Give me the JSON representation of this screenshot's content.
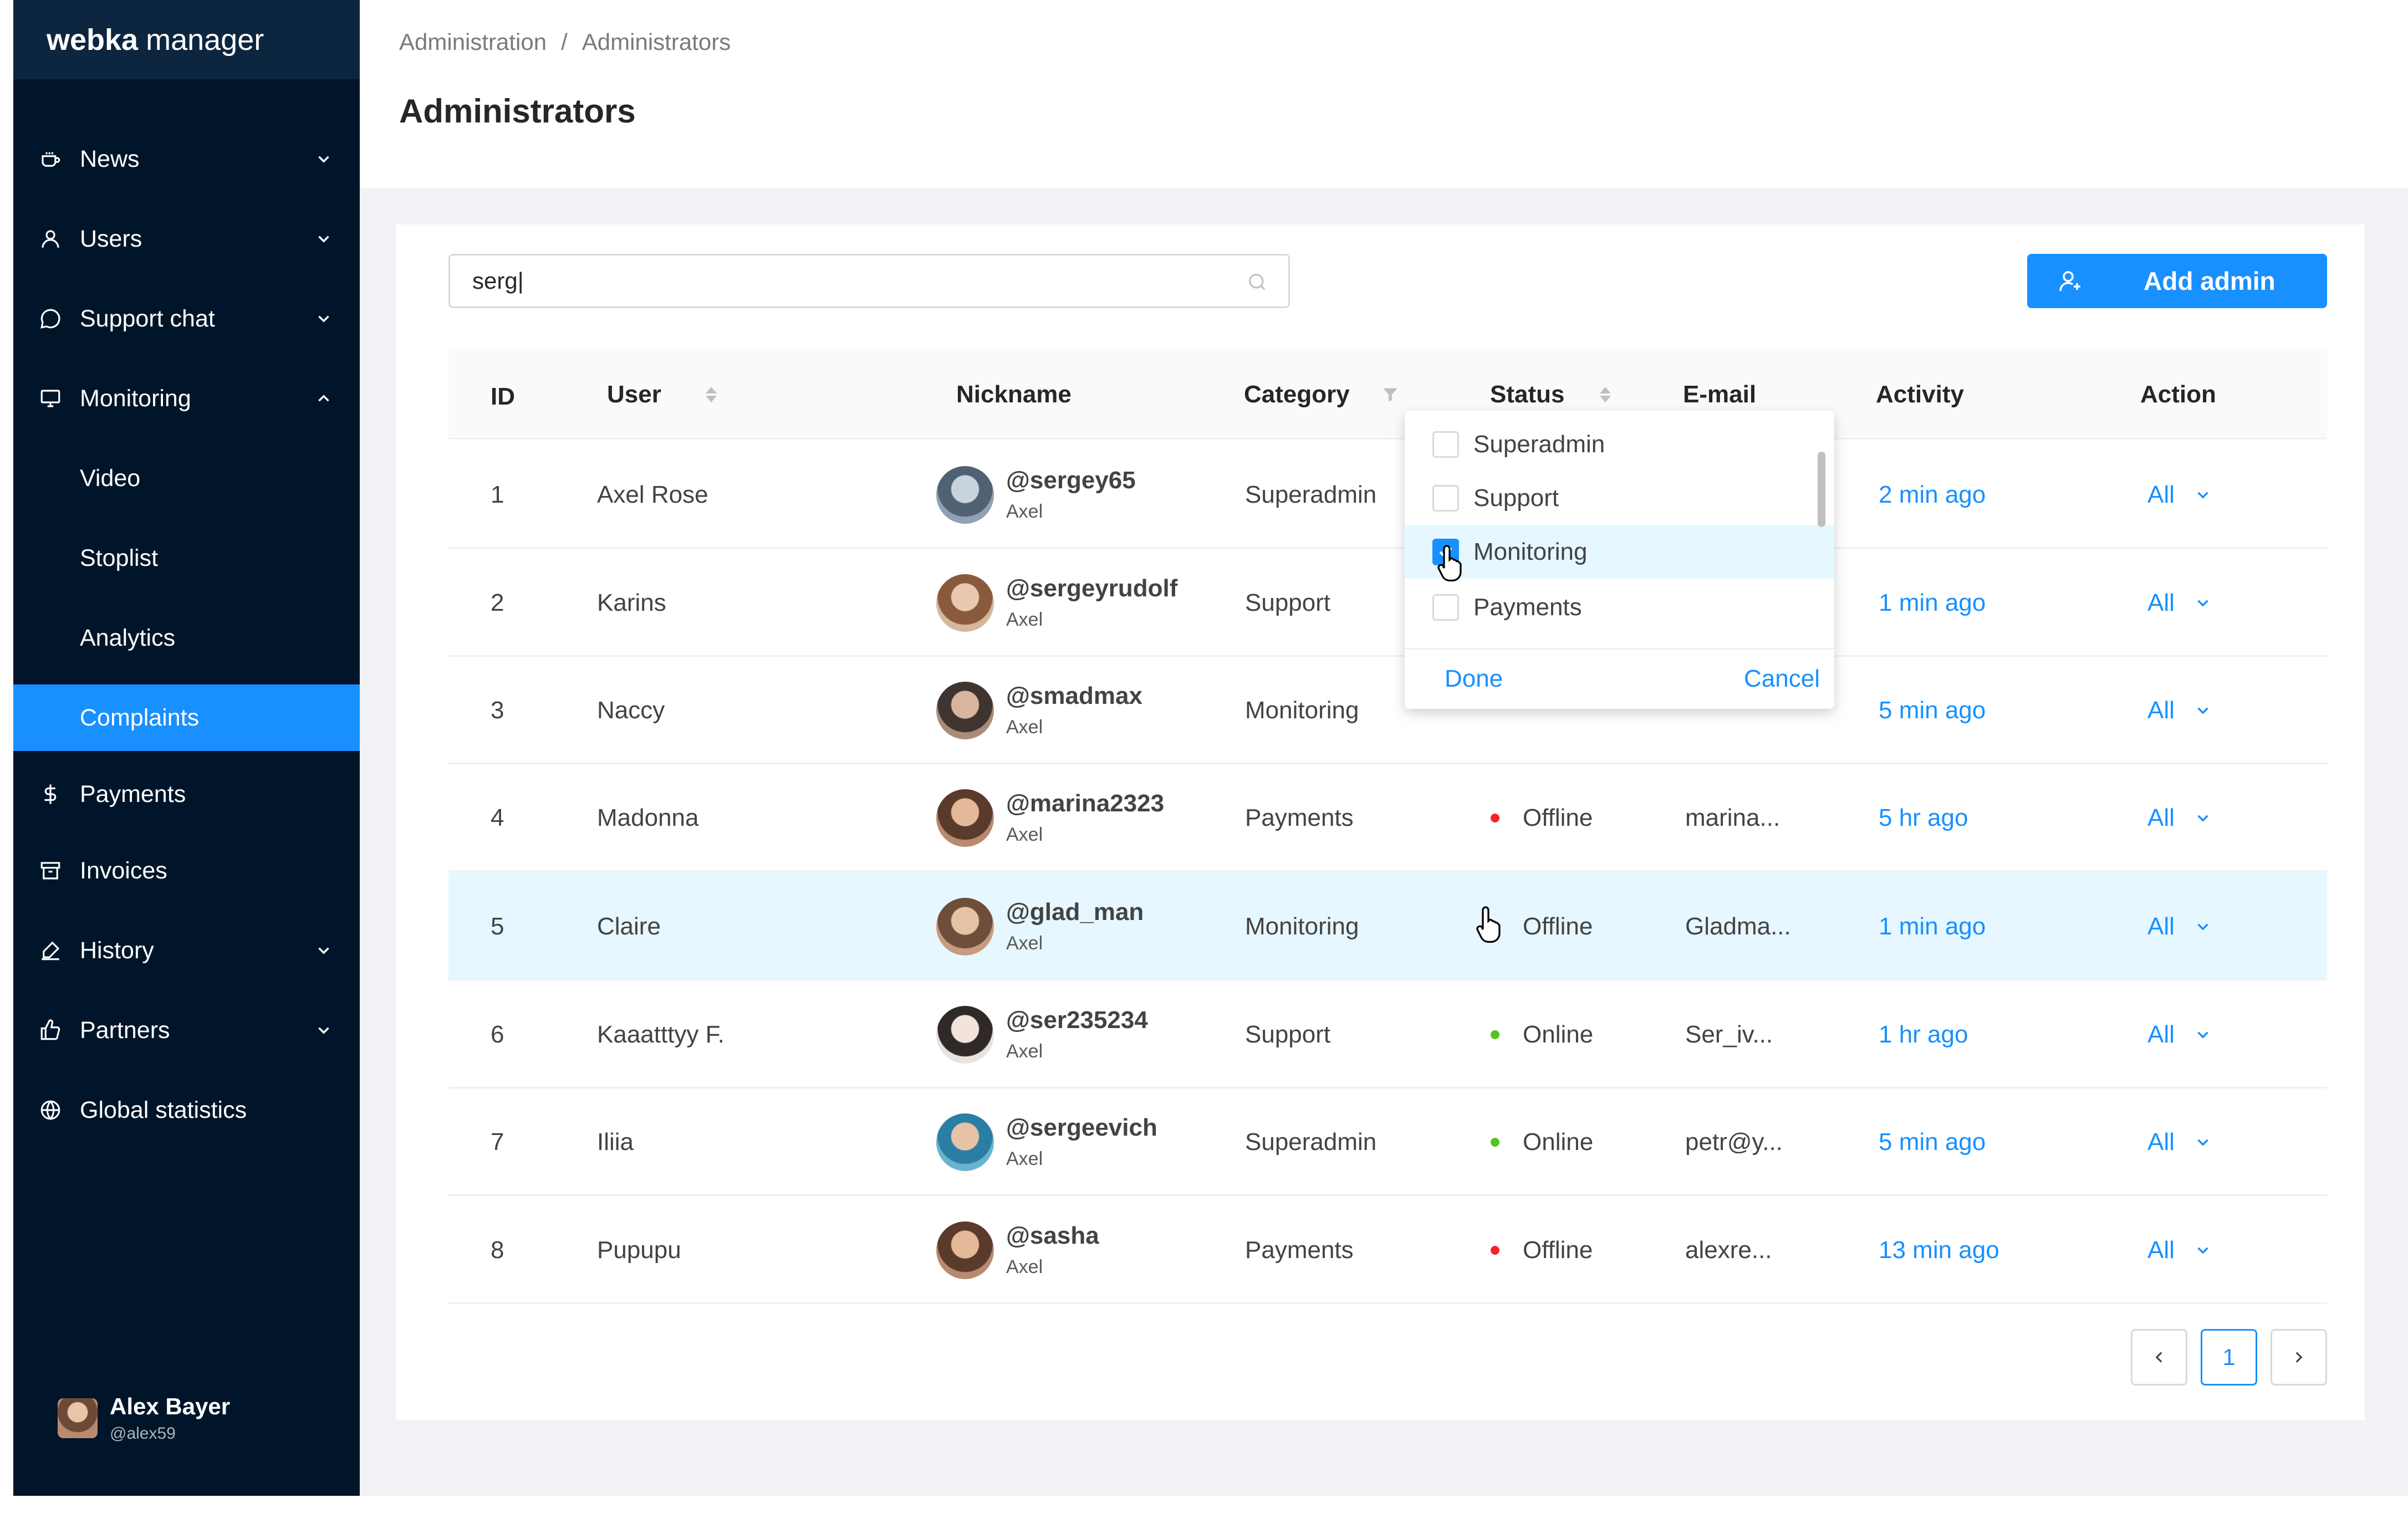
{
  "sidebar": {
    "logo_bold": "webka",
    "logo_rest": "manager",
    "items": [
      {
        "label": "News",
        "icon": "coffee-icon",
        "has_chevron": "down"
      },
      {
        "label": "Users",
        "icon": "user-icon",
        "has_chevron": "down"
      },
      {
        "label": "Support chat",
        "icon": "message-icon",
        "has_chevron": "down"
      },
      {
        "label": "Monitoring",
        "icon": "monitor-icon",
        "has_chevron": "up"
      },
      {
        "label": "Video",
        "sub": true
      },
      {
        "label": "Stoplist",
        "sub": true
      },
      {
        "label": "Analytics",
        "sub": true
      },
      {
        "label": "Complaints",
        "sub": true,
        "active": true
      },
      {
        "label": "Payments",
        "icon": "dollar-icon"
      },
      {
        "label": "Invoices",
        "icon": "inbox-icon"
      },
      {
        "label": "History",
        "icon": "pen-icon",
        "has_chevron": "down"
      },
      {
        "label": "Partners",
        "icon": "like-icon",
        "has_chevron": "down"
      },
      {
        "label": "Global statistics",
        "icon": "globe-icon"
      }
    ],
    "profile": {
      "name": "Alex Bayer",
      "handle": "@alex59"
    }
  },
  "breadcrumb": {
    "parent": "Administration",
    "separator": "/",
    "current": "Administrators"
  },
  "page_title": "Administrators",
  "search": {
    "value": "serg|"
  },
  "add_button": {
    "label": "Add admin"
  },
  "table": {
    "columns": {
      "id": "ID",
      "user": "User",
      "nickname": "Nickname",
      "category": "Category",
      "status": "Status",
      "email": "E-mail",
      "activity": "Activity",
      "action": "Action"
    },
    "rows": [
      {
        "id": "1",
        "user": "Axel Rose",
        "nick": "@sergey65",
        "sub": "Axel",
        "category": "Superadmin",
        "status": "",
        "email": "",
        "activity": "2 min ago",
        "action": "All"
      },
      {
        "id": "2",
        "user": "Karins",
        "nick": "@sergeyrudolf",
        "sub": "Axel",
        "category": "Support",
        "status": "",
        "email": "",
        "activity": "1 min ago",
        "action": "All"
      },
      {
        "id": "3",
        "user": "Naccy",
        "nick": "@smadmax",
        "sub": "Axel",
        "category": "Monitoring",
        "status": "",
        "email": "",
        "activity": "5 min ago",
        "action": "All"
      },
      {
        "id": "4",
        "user": "Madonna",
        "nick": "@marina2323",
        "sub": "Axel",
        "category": "Payments",
        "status": "Offline",
        "email": "marina...",
        "activity": "5 hr ago",
        "action": "All"
      },
      {
        "id": "5",
        "user": "Claire",
        "nick": "@glad_man",
        "sub": "Axel",
        "category": "Monitoring",
        "status": "Offline",
        "email": "Gladma...",
        "activity": "1 min ago",
        "action": "All"
      },
      {
        "id": "6",
        "user": "Kaaatttyy F.",
        "nick": "@ser235234",
        "sub": "Axel",
        "category": "Support",
        "status": "Online",
        "email": "Ser_iv...",
        "activity": "1 hr ago",
        "action": "All"
      },
      {
        "id": "7",
        "user": "Iliia",
        "nick": "@sergeevich",
        "sub": "Axel",
        "category": "Superadmin",
        "status": "Online",
        "email": "petr@y...",
        "activity": "5 min ago",
        "action": "All"
      },
      {
        "id": "8",
        "user": "Pupupu",
        "nick": "@sasha",
        "sub": "Axel",
        "category": "Payments",
        "status": "Offline",
        "email": "alexre...",
        "activity": "13 min ago",
        "action": "All"
      }
    ]
  },
  "filter_dropdown": {
    "options": [
      {
        "label": "Superadmin",
        "checked": false
      },
      {
        "label": "Support",
        "checked": false
      },
      {
        "label": "Monitoring",
        "checked": true
      },
      {
        "label": "Payments",
        "checked": false
      }
    ],
    "done_label": "Done",
    "cancel_label": "Cancel"
  },
  "pagination": {
    "current": "1"
  },
  "colors": {
    "accent": "#1890ff",
    "sidebar_bg": "#001529",
    "online": "#52c41a",
    "offline": "#f5222d",
    "row_highlight": "#e6f7ff"
  }
}
